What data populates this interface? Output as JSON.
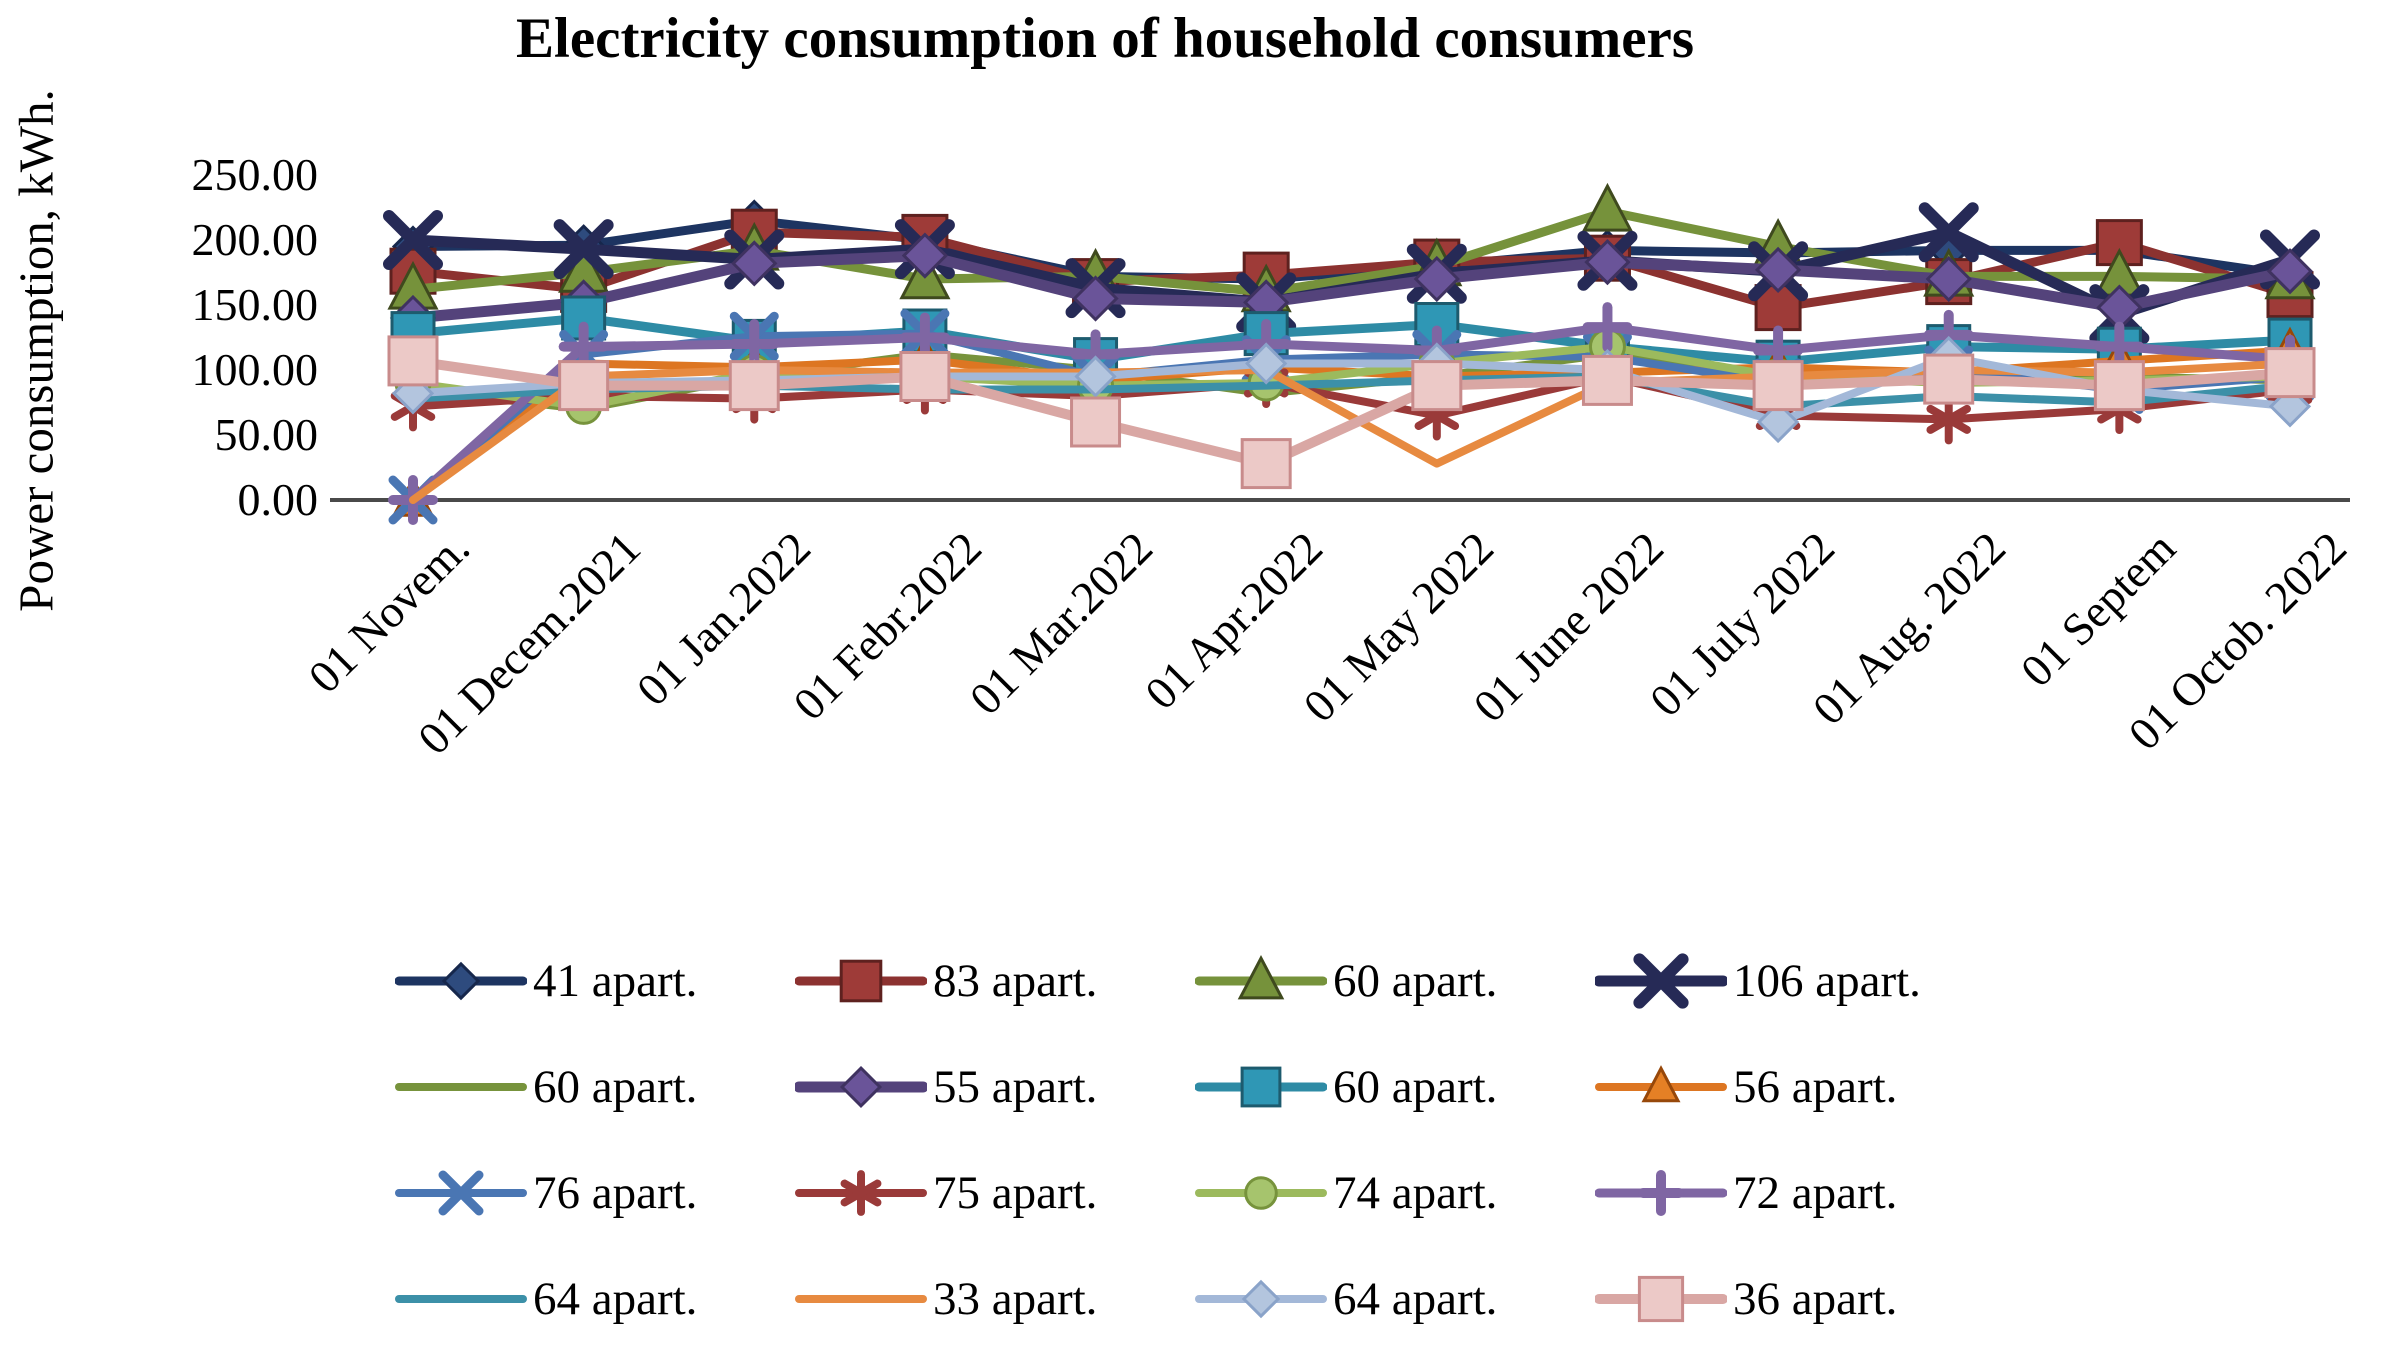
{
  "chart_data": {
    "type": "line",
    "title": "Electricity consumption of household consumers",
    "ylabel": "Power consumption, kWh.",
    "ylim": [
      0,
      250
    ],
    "ytick_step": 50,
    "ytick_labels": [
      "0.00",
      "50.00",
      "100.00",
      "150.00",
      "200.00",
      "250.00"
    ],
    "grid": false,
    "legend_position": "bottom",
    "axis_color": "#4a4a4a",
    "categories": [
      "01 Novem.",
      "01 Decem.2021",
      "01 Jan.2022",
      "01 Febr.2022",
      "01 Mar.2022",
      "01 Apr.2022",
      "01 May 2022",
      "01 June 2022",
      "01 July 2022",
      "01 Aug. 2022",
      "01 Septem",
      "01 Octob. 2022"
    ],
    "series": [
      {
        "name": "41 apart.",
        "marker": "diamond",
        "color": "#1d3461",
        "fill": "#2e4b7e",
        "edge": "#16274c",
        "line_width": 9,
        "marker_size": 38,
        "values": [
          195,
          196,
          215,
          200,
          172,
          170,
          180,
          192,
          190,
          192,
          192,
          173
        ]
      },
      {
        "name": "83 apart.",
        "marker": "square",
        "color": "#8c3230",
        "fill": "#9e3b38",
        "edge": "#5e211f",
        "line_width": 9,
        "marker_size": 44,
        "values": [
          176,
          162,
          206,
          202,
          168,
          173,
          183,
          186,
          148,
          168,
          198,
          158
        ]
      },
      {
        "name": "60 apart.",
        "marker": "triangle",
        "color": "#76923b",
        "fill": "#76923b",
        "edge": "#3f4a1e",
        "line_width": 9,
        "marker_size": 44,
        "values": [
          162,
          175,
          192,
          170,
          172,
          160,
          180,
          222,
          195,
          172,
          172,
          170
        ]
      },
      {
        "name": "106 apart.",
        "marker": "x",
        "color": "#262a56",
        "fill": "#262a56",
        "edge": "#262a56",
        "line_width": 11,
        "marker_size": 48,
        "values": [
          200,
          193,
          185,
          193,
          163,
          152,
          174,
          184,
          176,
          206,
          143,
          185
        ]
      },
      {
        "name": "60 apart.",
        "marker": "none",
        "color": "#77933c",
        "fill": "#77933c",
        "edge": "#77933c",
        "line_width": 8,
        "marker_size": 0,
        "values": [
          85,
          70,
          95,
          112,
          100,
          82,
          95,
          112,
          95,
          97,
          95,
          92
        ]
      },
      {
        "name": "55 apart.",
        "marker": "diamond",
        "color": "#54437b",
        "fill": "#6a5499",
        "edge": "#3f3260",
        "line_width": 11,
        "marker_size": 42,
        "values": [
          140,
          152,
          182,
          188,
          155,
          152,
          170,
          183,
          177,
          170,
          148,
          176
        ]
      },
      {
        "name": "60 apart.",
        "marker": "square",
        "color": "#2e8ba5",
        "fill": "#2f97b5",
        "edge": "#1d5b6e",
        "line_width": 9,
        "marker_size": 42,
        "values": [
          128,
          140,
          122,
          130,
          108,
          128,
          135,
          118,
          106,
          118,
          116,
          123
        ]
      },
      {
        "name": "56 apart.",
        "marker": "triangle",
        "color": "#dd7622",
        "fill": "#e58025",
        "edge": "#97480a",
        "line_width": 8,
        "marker_size": 36,
        "values": [
          0,
          105,
          102,
          108,
          92,
          102,
          95,
          98,
          102,
          98,
          107,
          115
        ]
      },
      {
        "name": "76 apart.",
        "marker": "x",
        "color": "#4a76b3",
        "fill": "#4a76b3",
        "edge": "#4a76b3",
        "line_width": 8,
        "marker_size": 40,
        "values": [
          0,
          112,
          126,
          128,
          95,
          108,
          112,
          110,
          90,
          100,
          85,
          95
        ]
      },
      {
        "name": "75 apart.",
        "marker": "asterisk",
        "color": "#9a3a39",
        "fill": "#9a3a39",
        "edge": "#9a3a39",
        "line_width": 8,
        "marker_size": 42,
        "values": [
          72,
          80,
          78,
          85,
          80,
          90,
          65,
          95,
          65,
          62,
          70,
          85
        ]
      },
      {
        "name": "74 apart.",
        "marker": "circle",
        "color": "#9cba5d",
        "fill": "#a6c46d",
        "edge": "#77933c",
        "line_width": 8,
        "marker_size": 34,
        "values": [
          90,
          72,
          98,
          95,
          88,
          90,
          105,
          118,
          95,
          90,
          92,
          95
        ]
      },
      {
        "name": "72 apart.",
        "marker": "plus",
        "color": "#7f66a3",
        "fill": "#68508b",
        "edge": "#68508b",
        "line_width": 9,
        "marker_size": 40,
        "values": [
          0,
          118,
          120,
          125,
          112,
          120,
          115,
          133,
          115,
          127,
          118,
          108
        ]
      },
      {
        "name": "64 apart.",
        "marker": "none",
        "color": "#3c90a8",
        "fill": "#3c90a8",
        "edge": "#3c90a8",
        "line_width": 8,
        "marker_size": 0,
        "values": [
          78,
          85,
          88,
          85,
          85,
          88,
          92,
          95,
          72,
          80,
          75,
          88
        ]
      },
      {
        "name": "33 apart.",
        "marker": "none",
        "color": "#e78a40",
        "fill": "#e78a40",
        "edge": "#e78a40",
        "line_width": 8,
        "marker_size": 0,
        "values": [
          0,
          95,
          100,
          98,
          98,
          100,
          28,
          90,
          95,
          100,
          98,
          105
        ]
      },
      {
        "name": "64 apart.",
        "marker": "diamond",
        "color": "#a3b8d8",
        "fill": "#b3c5de",
        "edge": "#8aa3c9",
        "line_width": 8,
        "marker_size": 38,
        "values": [
          82,
          90,
          92,
          95,
          95,
          105,
          105,
          100,
          60,
          110,
          85,
          72
        ]
      },
      {
        "name": "36 apart.",
        "marker": "square",
        "color": "#d9a7a4",
        "fill": "#ecc9c7",
        "edge": "#c88b8b",
        "line_width": 10,
        "marker_size": 48,
        "values": [
          107,
          88,
          88,
          95,
          60,
          28,
          88,
          92,
          88,
          93,
          88,
          98
        ]
      }
    ]
  }
}
